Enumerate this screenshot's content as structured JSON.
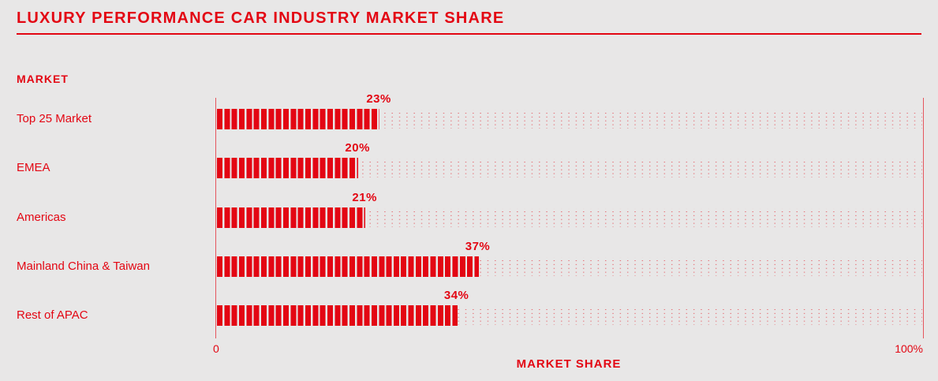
{
  "title": "LUXURY PERFORMANCE CAR INDUSTRY MARKET SHARE",
  "colors": {
    "accent_red": "#e30613",
    "background": "#e8e7e7"
  },
  "axes": {
    "y_title": "MARKET",
    "x_title": "MARKET SHARE",
    "x_tick_min": "0",
    "x_tick_max": "100%"
  },
  "chart_data": {
    "type": "bar",
    "orientation": "horizontal",
    "title": "LUXURY PERFORMANCE CAR INDUSTRY MARKET SHARE",
    "categories": [
      "Top 25 Market",
      "EMEA",
      "Americas",
      "Mainland China & Taiwan",
      "Rest of APAC"
    ],
    "values": [
      23,
      20,
      21,
      37,
      34
    ],
    "value_labels": [
      "23%",
      "20%",
      "21%",
      "37%",
      "34%"
    ],
    "xlabel": "MARKET SHARE",
    "ylabel": "MARKET",
    "xlim": [
      0,
      100
    ],
    "grid": "dotted-track",
    "legend": "none",
    "bar_style": "striped-segments"
  }
}
